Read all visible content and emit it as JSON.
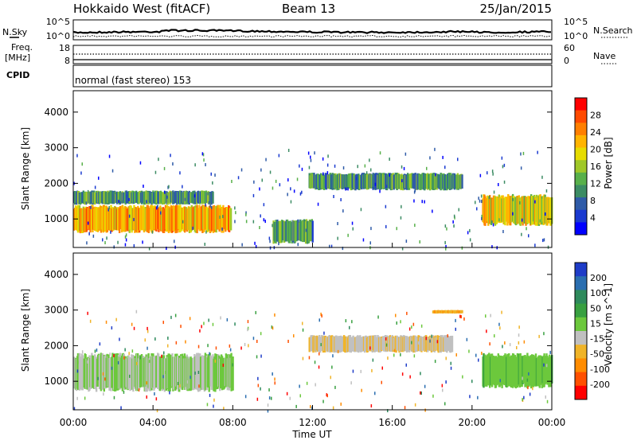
{
  "header": {
    "station": "Hokkaido West (fitACF)",
    "beam": "Beam 13",
    "date": "25/Jan/2015"
  },
  "noise_panel": {
    "left_label": "N.Sky",
    "right_label": "N.Search",
    "left_ticks": [
      "10^5",
      "10^0"
    ],
    "right_ticks": [
      "10^5",
      "10^0"
    ]
  },
  "freq_panel": {
    "left_label_1": "Freq.",
    "left_label_2": "[MHz]",
    "left_ticks": [
      "18",
      "8"
    ],
    "right_label": "Nave",
    "right_ticks": [
      "60",
      "0"
    ]
  },
  "cpid": {
    "label": "CPID",
    "value": "normal (fast stereo) 153"
  },
  "x_axis": {
    "label": "Time UT",
    "ticks": [
      "00:00",
      "04:00",
      "08:00",
      "12:00",
      "16:00",
      "20:00",
      "00:00"
    ]
  },
  "power_colorbar": {
    "label": "Power [dB]",
    "ticks": [
      "28",
      "24",
      "20",
      "16",
      "12",
      "8",
      "4"
    ],
    "colors": [
      "#ff0000",
      "#ff4a00",
      "#ff7f00",
      "#ffb400",
      "#e6dc00",
      "#a0c828",
      "#58b04a",
      "#3c8c64",
      "#2f5ba8",
      "#1a3ad0",
      "#0000ff"
    ]
  },
  "velocity_colorbar": {
    "label": "Velocity [m s^-1]",
    "ticks": [
      "200",
      "100",
      "50",
      "15",
      "-15",
      "-50",
      "-100",
      "-200"
    ],
    "colors": [
      "#1e3cc8",
      "#2a6eb0",
      "#2e8a5c",
      "#38a040",
      "#6cc83c",
      "#c0c0c0",
      "#f0b428",
      "#ff8c00",
      "#ff5000",
      "#ff0000"
    ]
  },
  "chart_data": {
    "type": "heatmap",
    "panels": [
      {
        "name": "power",
        "ylabel": "Slant Range [km]",
        "ylim": [
          200,
          4600
        ],
        "yticks": [
          1000,
          2000,
          3000,
          4000
        ],
        "xlim_hours": [
          0,
          24
        ],
        "clim": [
          0,
          30
        ],
        "features": [
          {
            "t0": 0.0,
            "t1": 7.9,
            "r0": 600,
            "r1": 1400,
            "level": 0.7
          },
          {
            "t0": 0.0,
            "t1": 7.0,
            "r0": 1400,
            "r1": 1800,
            "level": 0.35
          },
          {
            "t0": 10.0,
            "t1": 12.0,
            "r0": 300,
            "r1": 1000,
            "level": 0.35
          },
          {
            "t0": 11.8,
            "t1": 19.5,
            "r0": 1800,
            "r1": 2300,
            "level": 0.35
          },
          {
            "t0": 20.5,
            "t1": 24.0,
            "r0": 800,
            "r1": 1700,
            "level": 0.6
          }
        ]
      },
      {
        "name": "velocity",
        "ylabel": "Slant Range [km]",
        "ylim": [
          200,
          4600
        ],
        "yticks": [
          1000,
          2000,
          3000,
          4000
        ],
        "xlim_hours": [
          0,
          24
        ],
        "clim": [
          -200,
          200
        ],
        "features": [
          {
            "t0": 0.0,
            "t1": 8.0,
            "r0": 700,
            "r1": 1800,
            "value": 0
          },
          {
            "t0": 11.8,
            "t1": 19.0,
            "r0": 1800,
            "r1": 2300,
            "value": -40
          },
          {
            "t0": 18.0,
            "t1": 19.5,
            "r0": 2900,
            "r1": 3000,
            "value": -80
          },
          {
            "t0": 20.5,
            "t1": 24.0,
            "r0": 800,
            "r1": 1800,
            "value": 30
          }
        ]
      }
    ]
  }
}
